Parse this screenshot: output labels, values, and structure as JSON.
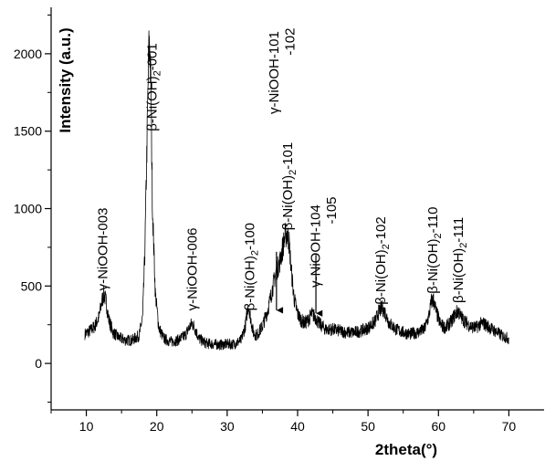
{
  "chart_data": {
    "type": "line",
    "title": "",
    "xlabel": "2theta(°)",
    "ylabel": "Intensity (a.u.)",
    "xlim": [
      5,
      75
    ],
    "ylim": [
      -300,
      2300
    ],
    "x_ticks": [
      "10",
      "20",
      "30",
      "40",
      "50",
      "60",
      "70"
    ],
    "y_ticks": [
      "0",
      "500",
      "1000",
      "1500",
      "2000"
    ],
    "grid": false,
    "line_color": "#000000",
    "series": [
      {
        "x": [
          9.8,
          10.5,
          11.2,
          11.8,
          12.2,
          12.5,
          12.8,
          13.2,
          13.8,
          14.5,
          15.5,
          16.5,
          17.5,
          18.0,
          18.3,
          18.6,
          18.85,
          19.0,
          19.15,
          19.4,
          19.8,
          20.3,
          21.0,
          22.0,
          23.0,
          24.0,
          24.6,
          25.0,
          25.4,
          26.0,
          27.0,
          28.0,
          29.0,
          30.0,
          31.0,
          32.0,
          32.6,
          33.0,
          33.3,
          33.7,
          34.2,
          35.0,
          35.8,
          36.5,
          37.0,
          37.5,
          37.9,
          38.2,
          38.5,
          38.8,
          39.1,
          39.5,
          40.0,
          40.5,
          41.0,
          41.5,
          42.0,
          42.5,
          43.0,
          43.5,
          44.0,
          45.0,
          46.0,
          47.0,
          48.0,
          49.0,
          50.0,
          51.0,
          51.5,
          52.0,
          52.5,
          53.0,
          54.0,
          55.0,
          56.0,
          57.0,
          58.0,
          58.6,
          59.0,
          59.3,
          59.7,
          60.3,
          61.0,
          61.8,
          62.4,
          62.8,
          63.2,
          63.8,
          64.5,
          65.3,
          65.8,
          66.3,
          67.0,
          68.0,
          69.0,
          70.0
        ],
        "y": [
          190,
          210,
          240,
          300,
          400,
          450,
          400,
          280,
          200,
          170,
          150,
          150,
          180,
          300,
          700,
          1400,
          2000,
          2080,
          1800,
          1000,
          450,
          230,
          160,
          140,
          150,
          180,
          230,
          260,
          230,
          160,
          130,
          125,
          120,
          125,
          125,
          150,
          250,
          380,
          300,
          200,
          180,
          240,
          350,
          500,
          600,
          660,
          750,
          820,
          840,
          780,
          600,
          420,
          320,
          280,
          260,
          280,
          320,
          300,
          260,
          240,
          220,
          220,
          210,
          200,
          200,
          210,
          230,
          270,
          330,
          360,
          320,
          260,
          220,
          200,
          190,
          200,
          220,
          300,
          400,
          410,
          330,
          250,
          230,
          270,
          320,
          340,
          300,
          270,
          240,
          230,
          250,
          260,
          240,
          210,
          180,
          160
        ]
      }
    ],
    "annotations": [
      {
        "text": "γ-NiOOH-003",
        "x": 12.3,
        "y": 470,
        "arrow": false
      },
      {
        "text": "β-Ni(OH)2-001",
        "x": 19.3,
        "y": 1500,
        "arrow": false
      },
      {
        "text": "γ-NiOOH-006",
        "x": 25.0,
        "y": 340,
        "arrow": false
      },
      {
        "text": "β-Ni(OH)2-100",
        "x": 33.2,
        "y": 340,
        "arrow": false
      },
      {
        "text": "β-Ni(OH)2-101",
        "x": 38.6,
        "y": 860,
        "arrow": false
      },
      {
        "text": "γ-NiOOH-101",
        "x": 36.6,
        "y": 1610,
        "arrow": false
      },
      {
        "text": "-102",
        "x": 38.9,
        "y": 1990,
        "arrow": false
      },
      {
        "text": "γ-NiOOH-104",
        "x": 42.5,
        "y": 490,
        "arrow": false
      },
      {
        "text": "-105",
        "x": 44.8,
        "y": 900,
        "arrow": false
      },
      {
        "text": "β-Ni(OH)2-102",
        "x": 51.8,
        "y": 380,
        "arrow": false
      },
      {
        "text": "β-Ni(OH)2-110",
        "x": 59.2,
        "y": 450,
        "arrow": false
      },
      {
        "text": "β-Ni(OH)2-111",
        "x": 62.8,
        "y": 390,
        "arrow": false
      },
      {
        "text": "",
        "x": 37.0,
        "y": 320,
        "arrow": true
      },
      {
        "text": "",
        "x": 42.6,
        "y": 300,
        "arrow": true
      }
    ]
  }
}
